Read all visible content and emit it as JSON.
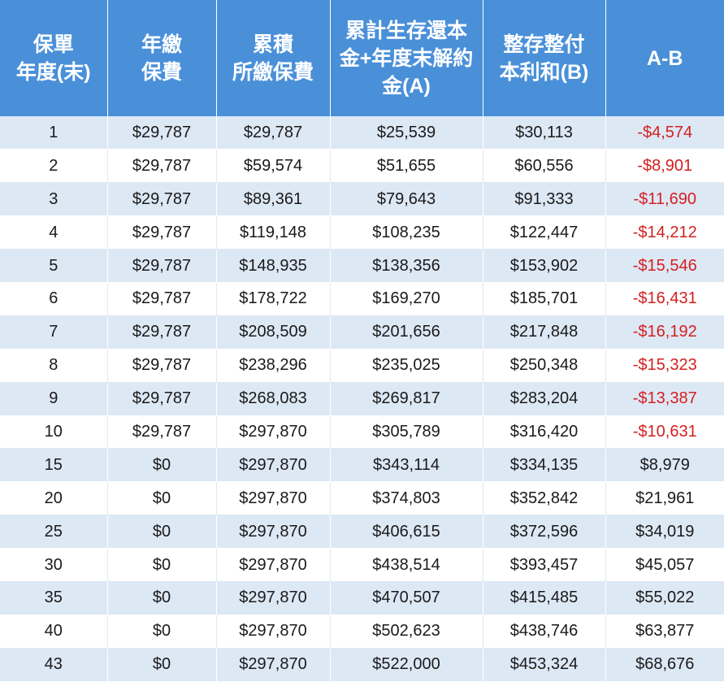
{
  "table": {
    "headers": [
      [
        "保單",
        "年度(末)"
      ],
      [
        "年繳",
        "保費"
      ],
      [
        "累積",
        "所繳保費"
      ],
      [
        "累計生存還本",
        "金+年度末解約",
        "金(A)"
      ],
      [
        "整存整付",
        "本利和(B)"
      ],
      [
        "A-B"
      ]
    ],
    "rows": [
      [
        "1",
        "$29,787",
        "$29,787",
        "$25,539",
        "$30,113",
        "-$4,574"
      ],
      [
        "2",
        "$29,787",
        "$59,574",
        "$51,655",
        "$60,556",
        "-$8,901"
      ],
      [
        "3",
        "$29,787",
        "$89,361",
        "$79,643",
        "$91,333",
        "-$11,690"
      ],
      [
        "4",
        "$29,787",
        "$119,148",
        "$108,235",
        "$122,447",
        "-$14,212"
      ],
      [
        "5",
        "$29,787",
        "$148,935",
        "$138,356",
        "$153,902",
        "-$15,546"
      ],
      [
        "6",
        "$29,787",
        "$178,722",
        "$169,270",
        "$185,701",
        "-$16,431"
      ],
      [
        "7",
        "$29,787",
        "$208,509",
        "$201,656",
        "$217,848",
        "-$16,192"
      ],
      [
        "8",
        "$29,787",
        "$238,296",
        "$235,025",
        "$250,348",
        "-$15,323"
      ],
      [
        "9",
        "$29,787",
        "$268,083",
        "$269,817",
        "$283,204",
        "-$13,387"
      ],
      [
        "10",
        "$29,787",
        "$297,870",
        "$305,789",
        "$316,420",
        "-$10,631"
      ],
      [
        "15",
        "$0",
        "$297,870",
        "$343,114",
        "$334,135",
        "$8,979"
      ],
      [
        "20",
        "$0",
        "$297,870",
        "$374,803",
        "$352,842",
        "$21,961"
      ],
      [
        "25",
        "$0",
        "$297,870",
        "$406,615",
        "$372,596",
        "$34,019"
      ],
      [
        "30",
        "$0",
        "$297,870",
        "$438,514",
        "$393,457",
        "$45,057"
      ],
      [
        "35",
        "$0",
        "$297,870",
        "$470,507",
        "$415,485",
        "$55,022"
      ],
      [
        "40",
        "$0",
        "$297,870",
        "$502,623",
        "$438,746",
        "$63,877"
      ],
      [
        "43",
        "$0",
        "$297,870",
        "$522,000",
        "$453,324",
        "$68,676"
      ]
    ]
  },
  "colors": {
    "header_bg": "#4a90d9",
    "header_text": "#ffffff",
    "stripe_bg": "#dde8f5",
    "row_bg": "#ffffff",
    "negative_text": "#d42020",
    "body_text": "#1a1a1a"
  }
}
